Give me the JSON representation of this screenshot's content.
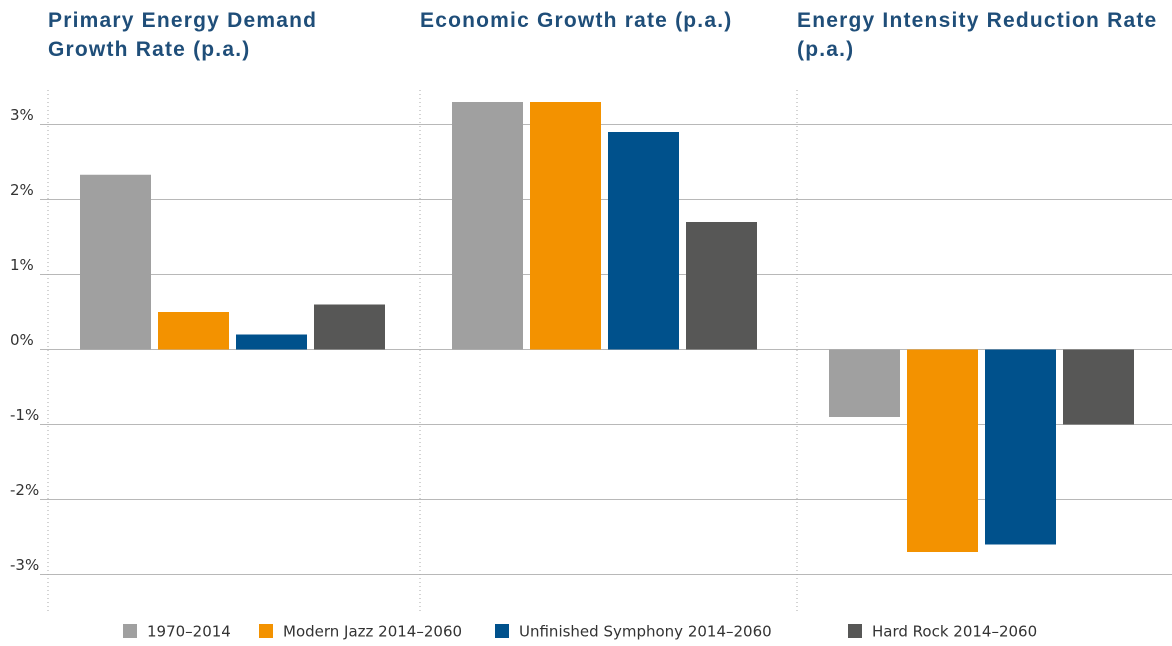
{
  "chart_data": {
    "type": "bar",
    "categories": [
      "Primary Energy Demand Growth Rate (p.a.)",
      "Economic Growth rate (p.a.)",
      "Energy Intensity Reduction Rate (p.a.)"
    ],
    "series": [
      {
        "name": "1970–2014",
        "color": "#a0a0a0",
        "values": [
          2.33,
          3.3,
          -0.9
        ]
      },
      {
        "name": "Modern Jazz 2014–2060",
        "color": "#f39200",
        "values": [
          0.5,
          3.3,
          -2.7
        ]
      },
      {
        "name": "Unfinished Symphony 2014–2060",
        "color": "#00518c",
        "values": [
          0.2,
          2.9,
          -2.6
        ]
      },
      {
        "name": "Hard Rock 2014–2060",
        "color": "#575756",
        "values": [
          0.6,
          1.7,
          -1.0
        ]
      }
    ],
    "ylim": [
      -3.5,
      3.5
    ],
    "yticks": [
      {
        "value": 3,
        "label": "3%"
      },
      {
        "value": 2,
        "label": "2%"
      },
      {
        "value": 1,
        "label": "1%"
      },
      {
        "value": 0,
        "label": "0%"
      },
      {
        "value": -1,
        "label": "-1%"
      },
      {
        "value": -2,
        "label": "-2%"
      },
      {
        "value": -3,
        "label": "-3%"
      }
    ],
    "grid": true,
    "legend": "bottom"
  }
}
